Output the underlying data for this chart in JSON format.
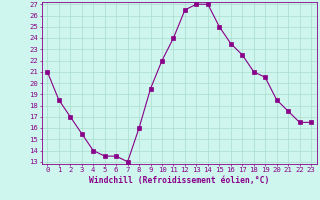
{
  "x": [
    0,
    1,
    2,
    3,
    4,
    5,
    6,
    7,
    8,
    9,
    10,
    11,
    12,
    13,
    14,
    15,
    16,
    17,
    18,
    19,
    20,
    21,
    22,
    23
  ],
  "y": [
    21,
    18.5,
    17,
    15.5,
    14,
    13.5,
    13.5,
    13,
    16,
    19.5,
    22,
    24,
    26.5,
    27,
    27,
    25,
    23.5,
    22.5,
    21,
    20.5,
    18.5,
    17.5,
    16.5,
    16.5
  ],
  "line_color": "#880088",
  "marker": "s",
  "marker_size": 2.2,
  "bg_color": "#cef5ee",
  "grid_color": "#aaddcc",
  "xlabel": "Windchill (Refroidissement éolien,°C)",
  "xlabel_color": "#880088",
  "tick_color": "#880088",
  "ylim": [
    13,
    27
  ],
  "xlim": [
    -0.5,
    23.5
  ],
  "yticks": [
    13,
    14,
    15,
    16,
    17,
    18,
    19,
    20,
    21,
    22,
    23,
    24,
    25,
    26,
    27
  ],
  "xticks": [
    0,
    1,
    2,
    3,
    4,
    5,
    6,
    7,
    8,
    9,
    10,
    11,
    12,
    13,
    14,
    15,
    16,
    17,
    18,
    19,
    20,
    21,
    22,
    23
  ],
  "xtick_labels": [
    "0",
    "1",
    "2",
    "3",
    "4",
    "5",
    "6",
    "7",
    "8",
    "9",
    "10",
    "11",
    "12",
    "13",
    "14",
    "15",
    "16",
    "17",
    "18",
    "19",
    "20",
    "21",
    "22",
    "23"
  ],
  "ytick_labels": [
    "13",
    "14",
    "15",
    "16",
    "17",
    "18",
    "19",
    "20",
    "21",
    "22",
    "23",
    "24",
    "25",
    "26",
    "27"
  ],
  "spine_color": "#880088",
  "xlabel_fontsize": 5.8,
  "tick_fontsize": 5.2
}
